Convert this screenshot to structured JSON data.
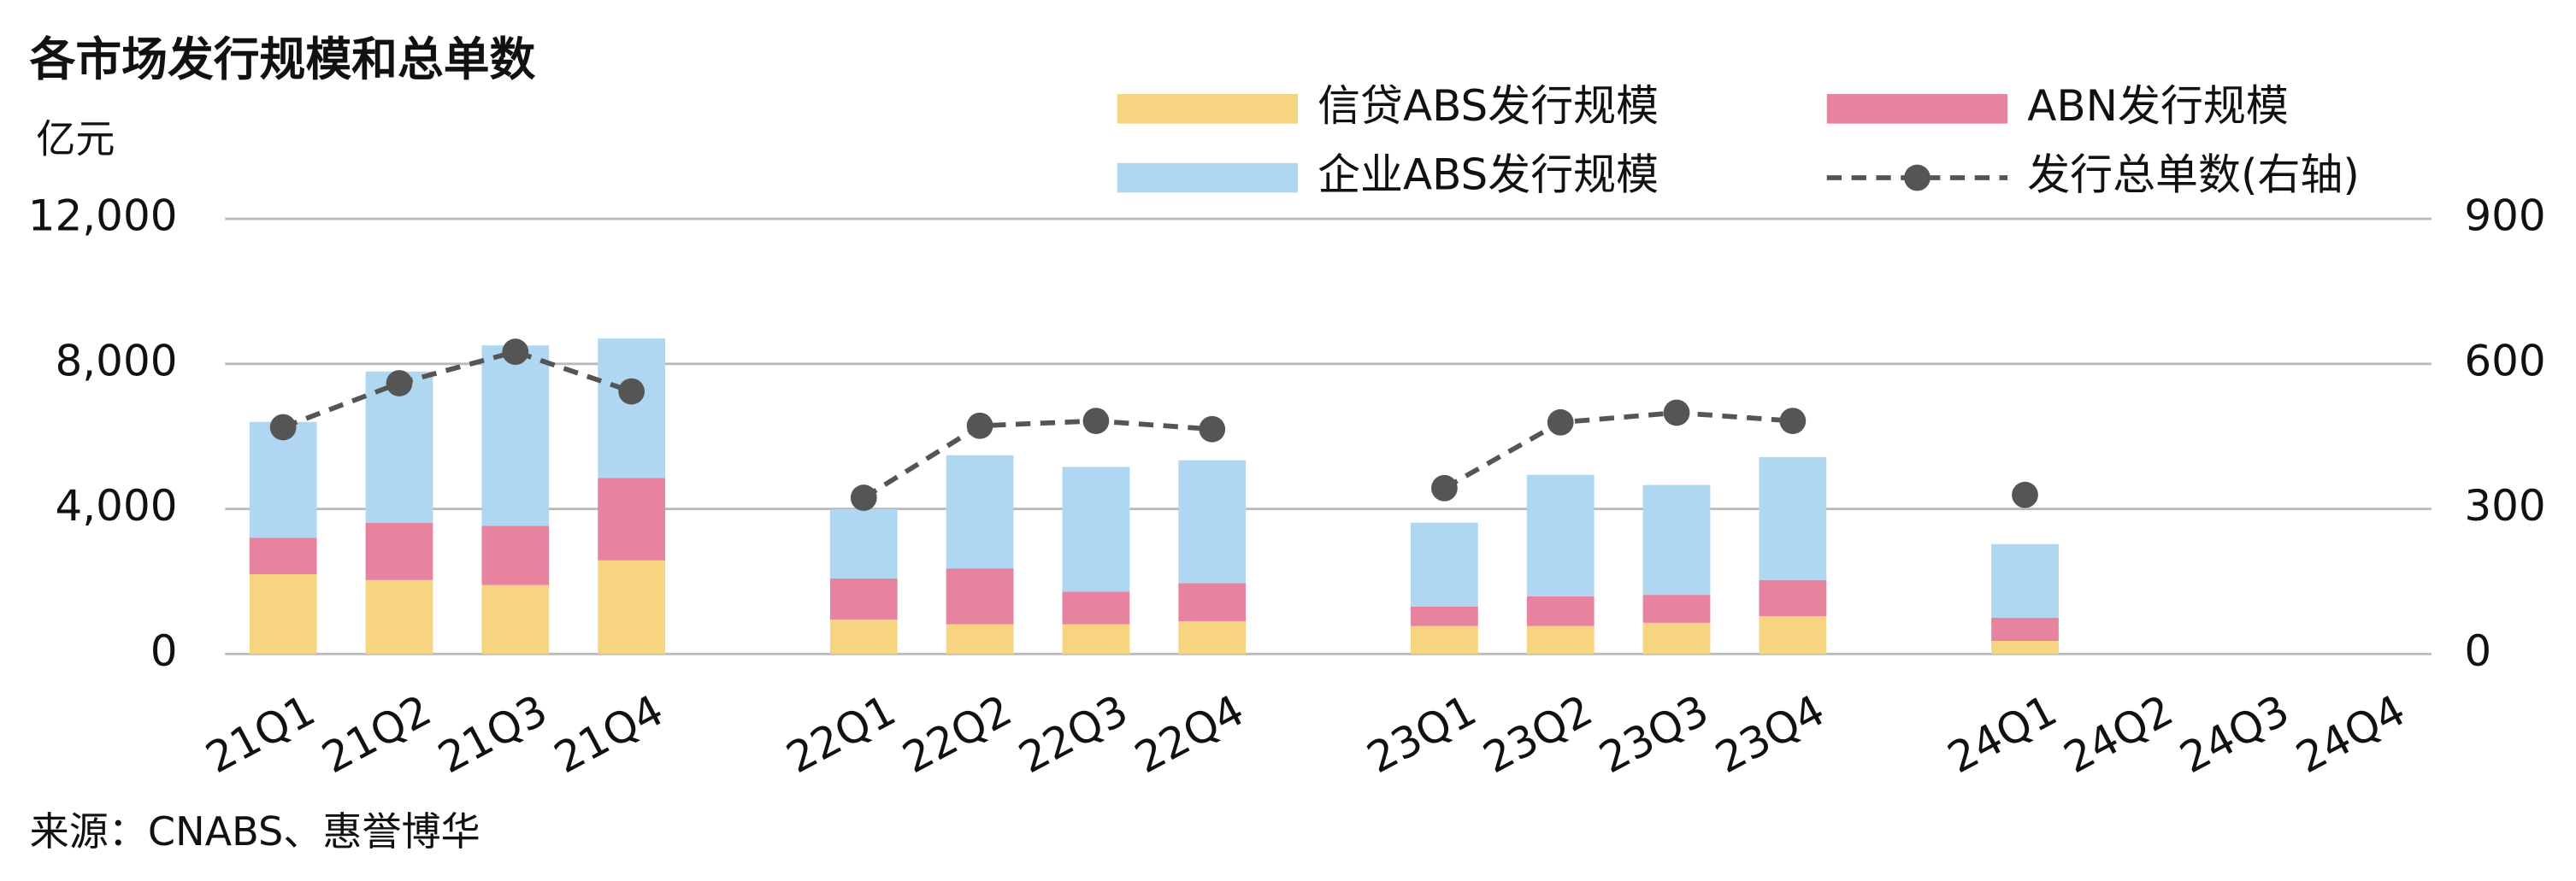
{
  "chart_data": {
    "type": "bar",
    "stacked": true,
    "title": "各市场发行规模和总单数",
    "y_label": "亿元",
    "source": "来源：CNABS、惠誉博华",
    "categories": [
      "21Q1",
      "21Q2",
      "21Q3",
      "21Q4",
      null,
      "22Q1",
      "22Q2",
      "22Q3",
      "22Q4",
      null,
      "23Q1",
      "23Q2",
      "23Q3",
      "23Q4",
      null,
      "24Q1",
      "24Q2",
      "24Q3",
      "24Q4"
    ],
    "series": [
      {
        "name": "信贷ABS发行规模",
        "color": "#f7d47f",
        "values": [
          2200,
          2040,
          1900,
          2580,
          null,
          950,
          820,
          820,
          900,
          null,
          770,
          770,
          860,
          1040,
          null,
          360,
          null,
          null,
          null
        ]
      },
      {
        "name": "ABN发行规模",
        "color": "#e7829f",
        "values": [
          1000,
          1580,
          1630,
          2270,
          null,
          1130,
          1540,
          900,
          1050,
          null,
          540,
          820,
          770,
          1000,
          null,
          640,
          null,
          null,
          null
        ]
      },
      {
        "name": "企业ABS发行规模",
        "color": "#afd7f2",
        "values": [
          3200,
          4170,
          4980,
          3850,
          null,
          1910,
          3120,
          3440,
          3390,
          null,
          2310,
          3350,
          3030,
          3390,
          null,
          2030,
          null,
          null,
          null
        ]
      },
      {
        "name": "发行总单数(右轴)",
        "color": "#555555",
        "type": "line",
        "axis": "y2",
        "values": [
          469,
          560,
          625,
          543,
          null,
          323,
          472,
          482,
          465,
          null,
          343,
          479,
          499,
          482,
          null,
          329,
          null,
          null,
          null
        ]
      }
    ],
    "ylim": [
      0,
      12000
    ],
    "yticks": [
      0,
      {
        "value": 4000,
        "label": "4,000"
      },
      {
        "value": 8000,
        "label": "8,000"
      },
      {
        "value": 12000,
        "label": "12,000"
      }
    ],
    "y2lim": [
      0,
      900
    ],
    "y2ticks": [
      0,
      300,
      600,
      900
    ],
    "grid": true,
    "legend": "top-right"
  }
}
